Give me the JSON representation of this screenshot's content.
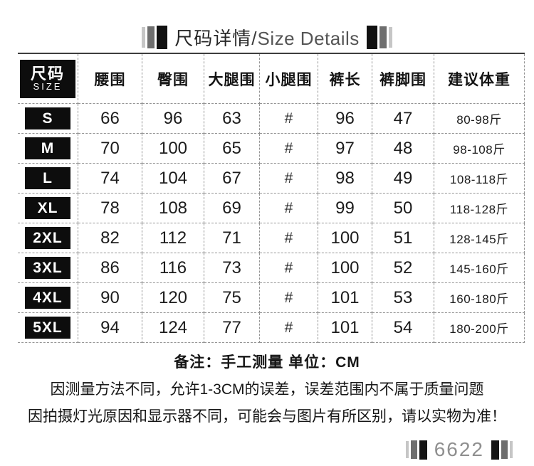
{
  "header": {
    "title_zh": "尺码详情",
    "title_slash": "/",
    "title_en": "Size Details"
  },
  "table": {
    "size_col": {
      "zh": "尺码",
      "en": "SIZE"
    },
    "columns": [
      "腰围",
      "臀围",
      "大腿围",
      "小腿围",
      "裤长",
      "裤脚围",
      "建议体重"
    ],
    "rows": [
      {
        "size": "S",
        "values": [
          "66",
          "96",
          "63",
          "#",
          "96",
          "47",
          "80-98斤"
        ]
      },
      {
        "size": "M",
        "values": [
          "70",
          "100",
          "65",
          "#",
          "97",
          "48",
          "98-108斤"
        ]
      },
      {
        "size": "L",
        "values": [
          "74",
          "104",
          "67",
          "#",
          "98",
          "49",
          "108-118斤"
        ]
      },
      {
        "size": "XL",
        "values": [
          "78",
          "108",
          "69",
          "#",
          "99",
          "50",
          "118-128斤"
        ]
      },
      {
        "size": "2XL",
        "values": [
          "82",
          "112",
          "71",
          "#",
          "100",
          "51",
          "128-145斤"
        ]
      },
      {
        "size": "3XL",
        "values": [
          "86",
          "116",
          "73",
          "#",
          "100",
          "52",
          "145-160斤"
        ]
      },
      {
        "size": "4XL",
        "values": [
          "90",
          "120",
          "75",
          "#",
          "101",
          "53",
          "160-180斤"
        ]
      },
      {
        "size": "5XL",
        "values": [
          "94",
          "124",
          "77",
          "#",
          "101",
          "54",
          "180-200斤"
        ]
      }
    ]
  },
  "notes": {
    "remark": "备注：手工测量 单位：CM",
    "tolerance": "因测量方法不同，允许1-3CM的误差，误差范围内不属于质量问题",
    "color_diff": "因拍摄灯光原因和显示器不同，可能会与图片有所区别，请以实物为准！"
  },
  "footer": {
    "code": "6622"
  },
  "colors": {
    "badge_black": "#0d0d0d",
    "dash_gray": "#949494",
    "bar_light": "#c6c6c6",
    "bar_mid": "#6e6e6e",
    "bar_dark": "#111111",
    "code_gray": "#8f8f8f"
  }
}
